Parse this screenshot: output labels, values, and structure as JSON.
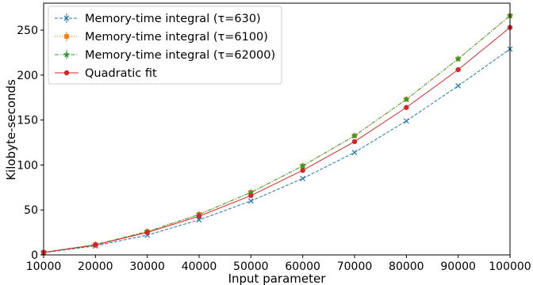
{
  "chart_data": {
    "type": "line",
    "title": "",
    "xlabel": "Input parameter",
    "ylabel": "Kilobyte-seconds",
    "xlim": [
      10000,
      100000
    ],
    "ylim": [
      0,
      280
    ],
    "xticks": [
      10000,
      20000,
      30000,
      40000,
      50000,
      60000,
      70000,
      80000,
      90000,
      100000
    ],
    "yticks": [
      0,
      50,
      100,
      150,
      200,
      250
    ],
    "grid": false,
    "legend_position": "top-left",
    "x": [
      10000,
      20000,
      30000,
      40000,
      50000,
      60000,
      70000,
      80000,
      90000,
      100000
    ],
    "series": [
      {
        "name": "Memory-time integral (τ=630)",
        "color": "#1f77b4",
        "linestyle": "dashed",
        "marker": "x",
        "values": [
          2.5,
          10,
          22,
          39,
          60,
          85,
          114,
          149,
          188,
          229
        ]
      },
      {
        "name": "Memory-time integral (τ=6100)",
        "color": "#ff7f0e",
        "linestyle": "dotted",
        "marker": "square",
        "values": [
          2.8,
          11.5,
          26,
          45,
          69.5,
          99,
          132.5,
          173,
          218,
          266
        ]
      },
      {
        "name": "Memory-time integral (τ=62000)",
        "color": "#2ca02c",
        "linestyle": "dashdot",
        "marker": "star",
        "values": [
          2.8,
          11.5,
          26,
          45,
          69.5,
          99,
          132.5,
          173,
          218,
          266
        ]
      },
      {
        "name": "Quadratic fit",
        "color": "#d62728",
        "linestyle": "solid",
        "marker": "circle",
        "values": [
          2.7,
          11,
          25,
          43,
          66,
          94,
          126,
          164,
          206,
          253
        ]
      }
    ]
  }
}
